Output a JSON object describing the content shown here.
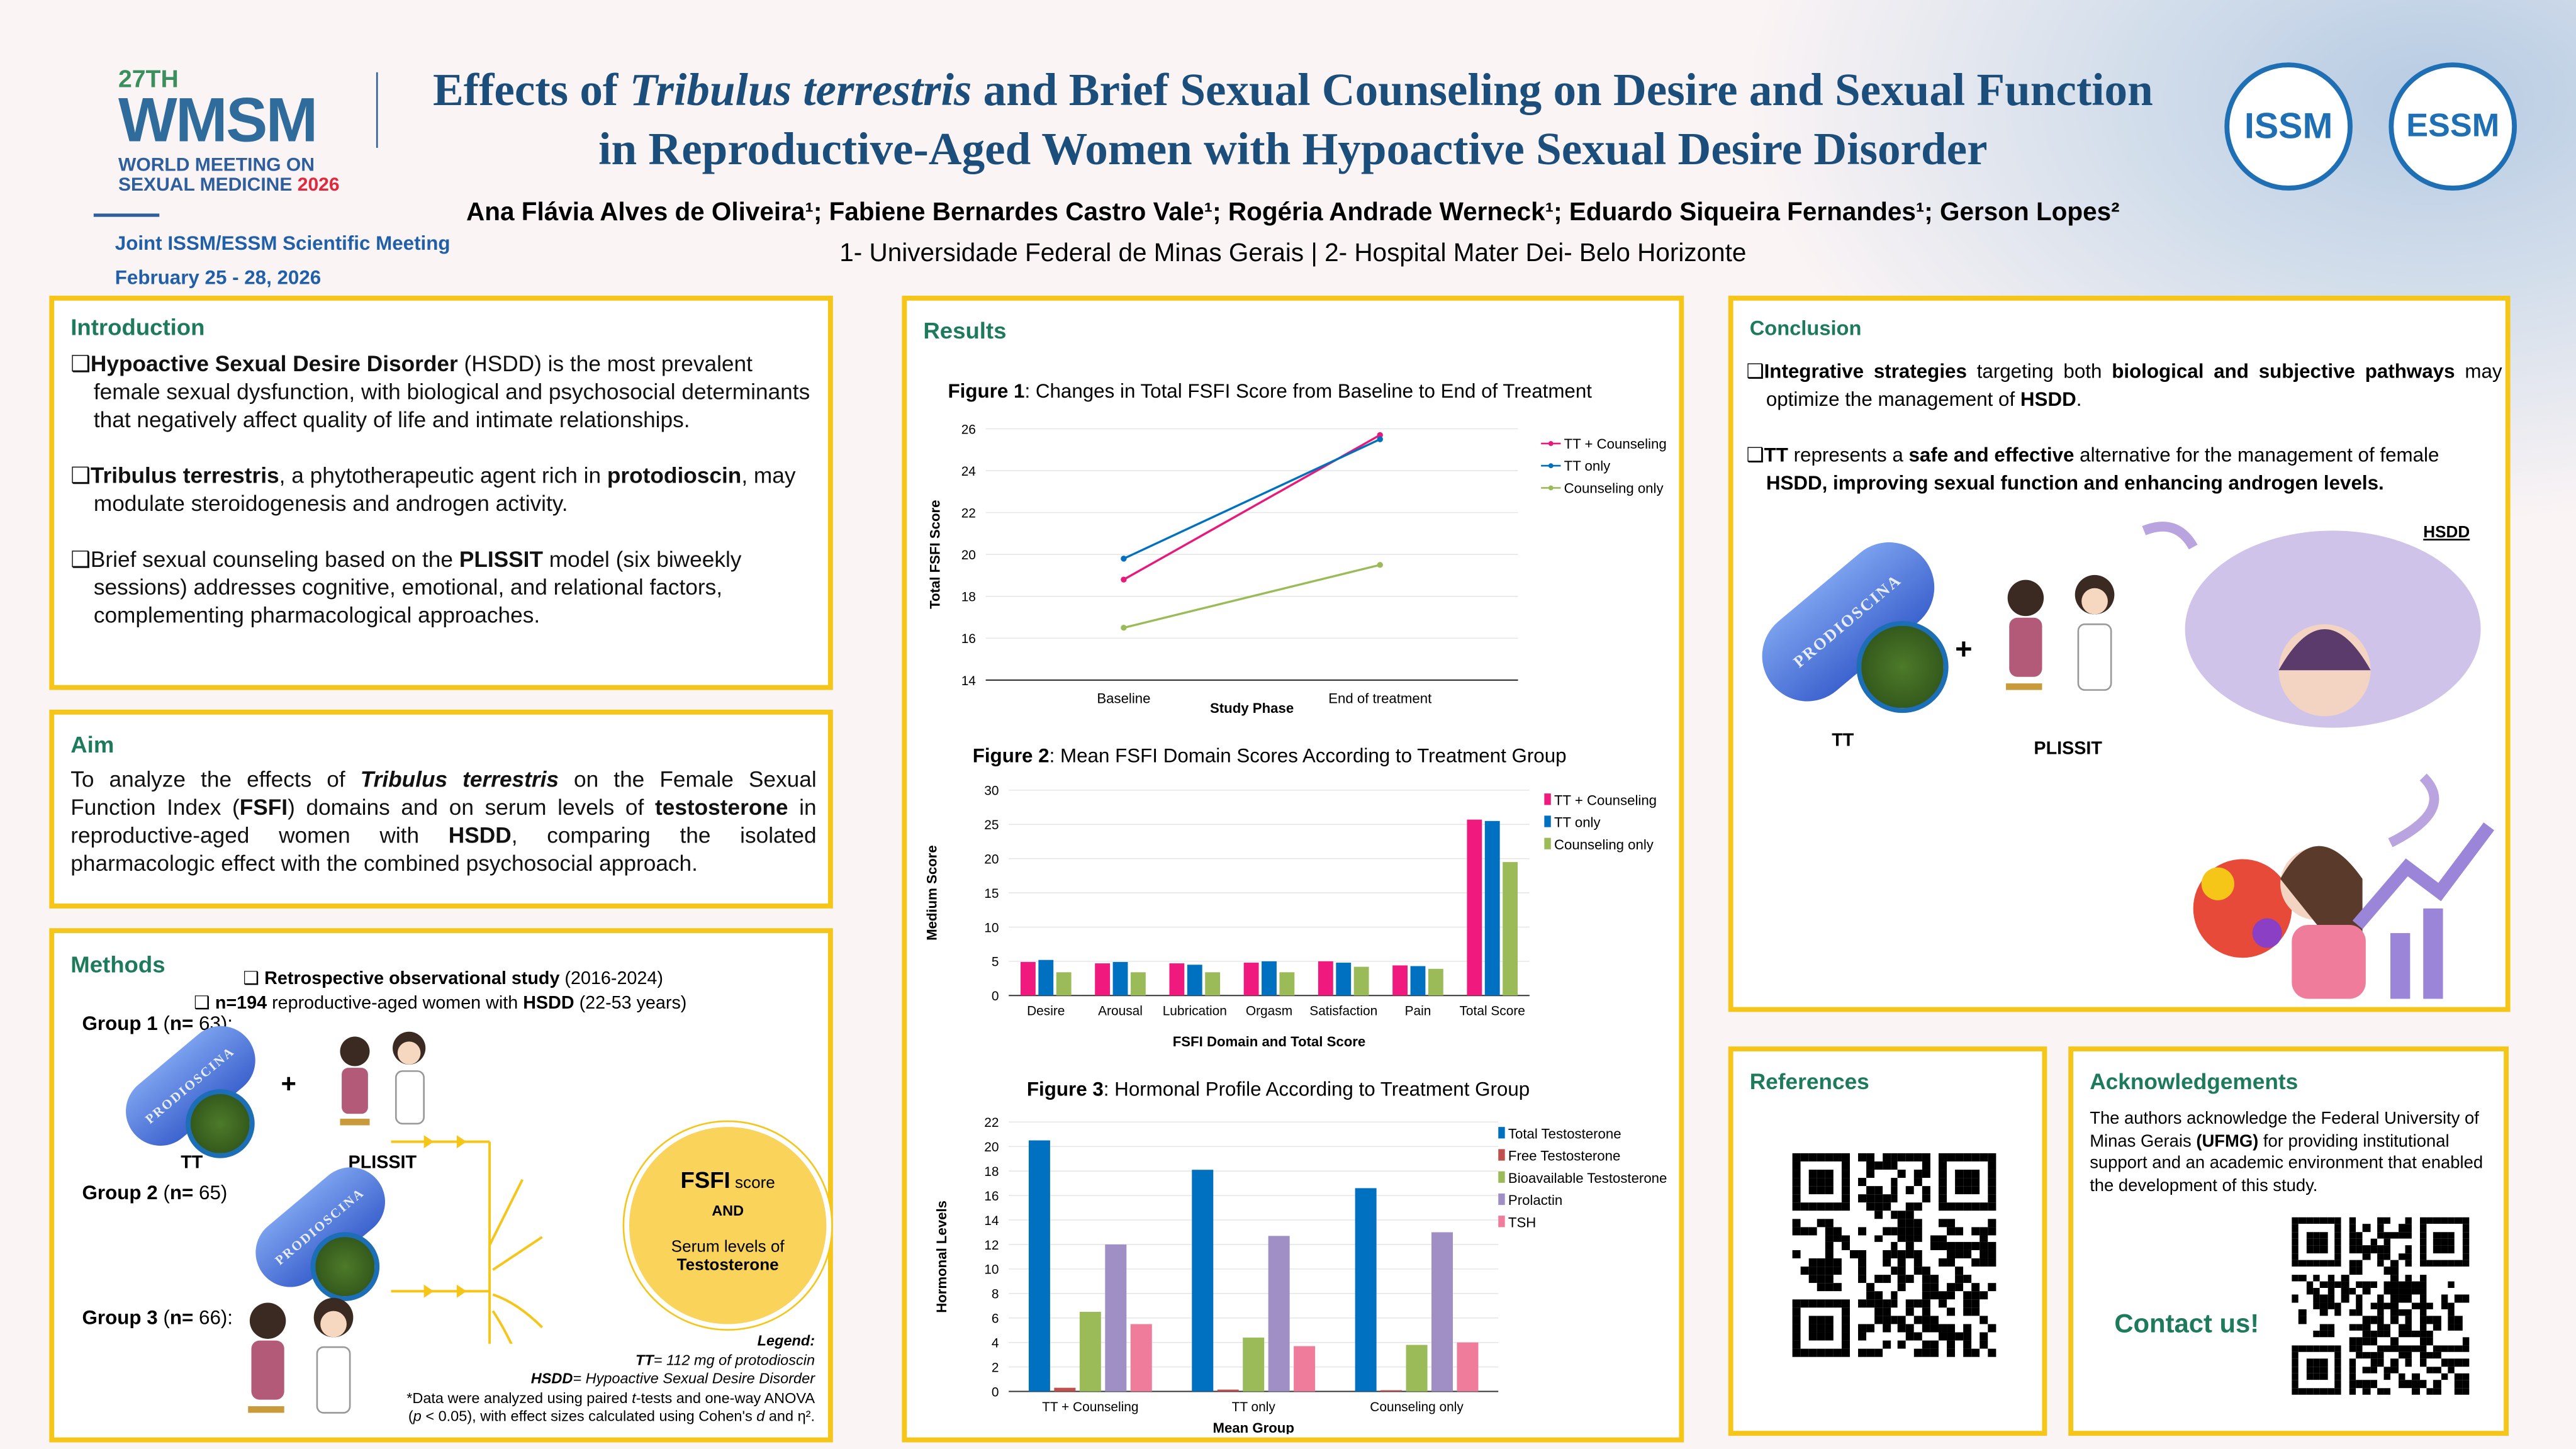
{
  "header": {
    "logo": {
      "edition": "27TH",
      "acronym": "WMSM",
      "line1": "WORLD MEETING ON",
      "line2": "SEXUAL MEDICINE",
      "year": "2026",
      "joint": "Joint ISSM/ESSM Scientific Meeting",
      "dates": "February 25 - 28, 2026"
    },
    "title_line1_a": "Effects of ",
    "title_line1_b": "Tribulus terrestris",
    "title_line1_c": " and Brief Sexual Counseling on Desire and Sexual Function",
    "title_line2": "in Reproductive-Aged Women with Hypoactive Sexual Desire Disorder",
    "authors": "Ana Flávia Alves de Oliveira¹; Fabiene Bernardes Castro Vale¹; Rogéria Andrade Werneck¹; Eduardo Siqueira Fernandes¹; Gerson Lopes²",
    "affiliations": "1- Universidade Federal de Minas Gerais | 2- Hospital Mater Dei- Belo Horizonte",
    "issm_logo": "ISSM · INTERNATIONAL SOCIETY FOR SEXUAL MEDICINE",
    "essm_logo": "ESSM · European Society for Sexual Medicine"
  },
  "intro": {
    "heading": "Introduction",
    "paras": [
      [
        [
          "❑",
          ""
        ],
        [
          "Hypoactive Sexual Desire Disorder",
          "b"
        ],
        [
          " (HSDD) is the most prevalent female sexual dysfunction, with biological and psychosocial determinants that negatively affect quality of life and intimate relationships.",
          ""
        ]
      ],
      [
        [
          "❑",
          ""
        ],
        [
          "Tribulus terrestris",
          "b"
        ],
        [
          ", a phytotherapeutic agent rich in ",
          ""
        ],
        [
          "protodioscin",
          "b"
        ],
        [
          ", may modulate steroidogenesis and androgen activity.",
          ""
        ]
      ],
      [
        [
          "❑",
          ""
        ],
        [
          "Brief sexual counseling based on the ",
          ""
        ],
        [
          "PLISSIT",
          "b"
        ],
        [
          " model (six biweekly sessions) addresses cognitive, emotional, and relational factors, complementing pharmacological approaches.",
          ""
        ]
      ]
    ]
  },
  "aim": {
    "heading": "Aim",
    "para": [
      [
        "To analyze the effects of ",
        ""
      ],
      [
        "Tribulus terrestris",
        "bi"
      ],
      [
        " on the Female Sexual Function Index (",
        ""
      ],
      [
        "FSFI",
        "b"
      ],
      [
        ") domains and on serum levels of ",
        ""
      ],
      [
        "testosterone",
        "b"
      ],
      [
        " in reproductive-aged women with ",
        ""
      ],
      [
        "HSDD",
        "b"
      ],
      [
        ", comparing the isolated pharmacologic effect with the combined psychosocial approach.",
        ""
      ]
    ]
  },
  "methods": {
    "heading": "Methods",
    "bullet1": [
      [
        "❑ ",
        ""
      ],
      [
        "Retrospective observational study",
        "b"
      ],
      [
        " (2016-2024)",
        ""
      ]
    ],
    "bullet2": [
      [
        "❑ ",
        ""
      ],
      [
        "n=194",
        "b"
      ],
      [
        " reproductive-aged women with ",
        ""
      ],
      [
        "HSDD",
        "b"
      ],
      [
        " (22-53 years)",
        ""
      ]
    ],
    "group1": [
      [
        "Group 1",
        "b"
      ],
      [
        " (",
        ""
      ],
      [
        "n=",
        "b"
      ],
      [
        " 63):",
        ""
      ]
    ],
    "group2": [
      [
        "Group 2",
        "b"
      ],
      [
        " (",
        ""
      ],
      [
        "n=",
        "b"
      ],
      [
        " 65)",
        ""
      ]
    ],
    "group3": [
      [
        "Group 3",
        "b"
      ],
      [
        " (",
        ""
      ],
      [
        "n=",
        "b"
      ],
      [
        " 66):",
        ""
      ]
    ],
    "pill_text": "PRODIOSCINA",
    "tt_label": "TT",
    "plissit_label": "PLISSIT",
    "plus": "+",
    "outcome": {
      "fsfi": "FSFI",
      "score": "score",
      "and": "AND",
      "serum": "Serum levels of",
      "testosterone": "Testosterone"
    },
    "legend_title": "Legend:",
    "legend_tt": [
      [
        "TT",
        "b"
      ],
      [
        "= 112 mg of protodioscin",
        ""
      ]
    ],
    "legend_hsdd": [
      [
        "HSDD",
        "b"
      ],
      [
        "= Hypoactive Sexual Desire Disorder",
        ""
      ]
    ],
    "note1": [
      [
        "*Data were analyzed using paired ",
        ""
      ],
      [
        "t",
        "i"
      ],
      [
        "-tests and one-way ANOVA",
        ""
      ]
    ],
    "note2": [
      [
        "(",
        ""
      ],
      [
        "p",
        "i"
      ],
      [
        " < 0.05), with effect sizes calculated using Cohen's ",
        ""
      ],
      [
        "d",
        "i"
      ],
      [
        " and η².",
        ""
      ]
    ]
  },
  "results": {
    "heading": "Results",
    "fig1_caption": [
      [
        "Figure 1",
        "b"
      ],
      [
        ": Changes in Total FSFI Score from Baseline to End of Treatment",
        ""
      ]
    ],
    "fig2_caption": [
      [
        "Figure 2",
        "b"
      ],
      [
        ": Mean FSFI Domain Scores According to Treatment Group",
        ""
      ]
    ],
    "fig3_caption": [
      [
        "Figure 3",
        "b"
      ],
      [
        ": Hormonal Profile According to Treatment Group",
        ""
      ]
    ]
  },
  "chart_data": [
    {
      "type": "line",
      "title": "Changes in Total FSFI Score from Baseline to End of Treatment",
      "xlabel": "Study Phase",
      "ylabel": "Total FSFI Score",
      "categories": [
        "Baseline",
        "End of treatment"
      ],
      "ylim": [
        14,
        26
      ],
      "yticks": [
        14,
        16,
        18,
        20,
        22,
        24,
        26
      ],
      "legend": "top-right",
      "series": [
        {
          "name": "TT + Counseling",
          "color": "#e8197a",
          "values": [
            18.8,
            25.7
          ]
        },
        {
          "name": "TT only",
          "color": "#0070c0",
          "values": [
            19.8,
            25.5
          ]
        },
        {
          "name": "Counseling only",
          "color": "#9bbb59",
          "values": [
            16.5,
            19.5
          ]
        }
      ]
    },
    {
      "type": "bar",
      "title": "Mean FSFI Domain Scores According to Treatment Group",
      "xlabel": "FSFI Domain and Total Score",
      "ylabel": "Medium Score",
      "categories": [
        "Desire",
        "Arousal",
        "Lubrication",
        "Orgasm",
        "Satisfaction",
        "Pain",
        "Total Score"
      ],
      "ylim": [
        0,
        30
      ],
      "yticks": [
        0,
        5,
        10,
        15,
        20,
        25,
        30
      ],
      "legend": "top-right",
      "series": [
        {
          "name": "TT + Counseling",
          "color": "#f0197d",
          "values": [
            4.9,
            4.7,
            4.7,
            4.8,
            5.0,
            4.4,
            25.7
          ]
        },
        {
          "name": "TT only",
          "color": "#0070c0",
          "values": [
            5.2,
            4.9,
            4.5,
            5.0,
            4.8,
            4.3,
            25.5
          ]
        },
        {
          "name": "Counseling only",
          "color": "#9bbb59",
          "values": [
            3.4,
            3.4,
            3.4,
            3.4,
            4.2,
            3.9,
            19.5
          ]
        }
      ]
    },
    {
      "type": "bar",
      "title": "Hormonal Profile According to Treatment Group",
      "xlabel": "Mean Group",
      "ylabel": "Hormonal Levels",
      "categories": [
        "TT + Counseling",
        "TT only",
        "Counseling only"
      ],
      "ylim": [
        0,
        22
      ],
      "yticks": [
        0,
        2,
        4,
        6,
        8,
        10,
        12,
        14,
        16,
        18,
        20,
        22
      ],
      "legend": "top-right",
      "series": [
        {
          "name": "Total Testosterone",
          "color": "#0070c0",
          "values": [
            20.5,
            18.1,
            16.6
          ]
        },
        {
          "name": "Free Testosterone",
          "color": "#c0504d",
          "values": [
            0.3,
            0.15,
            0.1
          ]
        },
        {
          "name": "Bioavailable Testosterone",
          "color": "#9bbb59",
          "values": [
            6.5,
            4.4,
            3.8
          ]
        },
        {
          "name": "Prolactin",
          "color": "#a08fc4",
          "values": [
            12.0,
            12.7,
            13.0
          ]
        },
        {
          "name": "TSH",
          "color": "#f07c9b",
          "values": [
            5.5,
            3.7,
            4.0
          ]
        }
      ]
    }
  ],
  "conclusion": {
    "heading": "Conclusion",
    "p1": [
      [
        "❑",
        ""
      ],
      [
        "Integrative strategies",
        "b"
      ],
      [
        " targeting both ",
        ""
      ],
      [
        "biological and subjective pathways",
        "b"
      ],
      [
        " may optimize the management of ",
        ""
      ],
      [
        "HSDD",
        "b"
      ],
      [
        ".",
        ""
      ]
    ],
    "p2": [
      [
        "❑",
        ""
      ],
      [
        "TT",
        "b"
      ],
      [
        " represents a ",
        ""
      ],
      [
        "safe and effective",
        "b"
      ],
      [
        " alternative for the management of female ",
        ""
      ],
      [
        "HSDD, improving sexual function and enhancing androgen levels.",
        "b"
      ]
    ],
    "hsdd_label": "HSDD",
    "tt_label": "TT",
    "plissit_label": "PLISSIT",
    "pill_text": "PRODIOSCINA",
    "plus": "+"
  },
  "references": {
    "heading": "References"
  },
  "acknowledgements": {
    "heading": "Acknowledgements",
    "para": [
      [
        "The authors acknowledge the Federal University of Minas Gerais ",
        ""
      ],
      [
        "(UFMG)",
        "b"
      ],
      [
        " for providing institutional support and an academic environment that enabled the development of this study.",
        ""
      ]
    ],
    "contact": "Contact us!"
  },
  "colors": {
    "border": "#f5c518",
    "heading": "#1d7a5a",
    "title": "#1c4e7c"
  }
}
